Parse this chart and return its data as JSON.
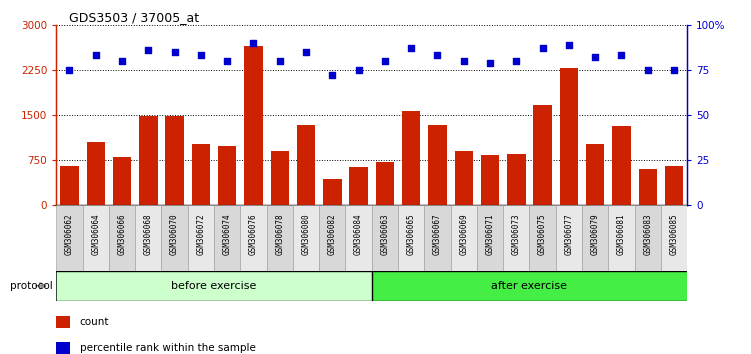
{
  "title": "GDS3503 / 37005_at",
  "samples": [
    "GSM306062",
    "GSM306064",
    "GSM306066",
    "GSM306068",
    "GSM306070",
    "GSM306072",
    "GSM306074",
    "GSM306076",
    "GSM306078",
    "GSM306080",
    "GSM306082",
    "GSM306084",
    "GSM306063",
    "GSM306065",
    "GSM306067",
    "GSM306069",
    "GSM306071",
    "GSM306073",
    "GSM306075",
    "GSM306077",
    "GSM306079",
    "GSM306081",
    "GSM306083",
    "GSM306085"
  ],
  "counts": [
    650,
    1050,
    800,
    1480,
    1490,
    1020,
    980,
    2650,
    900,
    1340,
    430,
    640,
    720,
    1570,
    1330,
    900,
    830,
    850,
    1660,
    2290,
    1020,
    1320,
    600,
    660
  ],
  "percentile_ranks": [
    75,
    83,
    80,
    86,
    85,
    83,
    80,
    90,
    80,
    85,
    72,
    75,
    80,
    87,
    83,
    80,
    79,
    80,
    87,
    89,
    82,
    83,
    75,
    75
  ],
  "before_exercise_count": 12,
  "left_ylim": [
    0,
    3000
  ],
  "right_ylim": [
    0,
    100
  ],
  "left_yticks": [
    0,
    750,
    1500,
    2250,
    3000
  ],
  "right_yticks": [
    0,
    25,
    50,
    75,
    100
  ],
  "bar_color": "#cc2200",
  "dot_color": "#0000cc",
  "before_color": "#ccffcc",
  "after_color": "#44ee44",
  "protocol_label": "protocol",
  "before_label": "before exercise",
  "after_label": "after exercise",
  "legend_count": "count",
  "legend_percentile": "percentile rank within the sample",
  "label_box_color": "#d8d8d8",
  "label_box_color_alt": "#e8e8e8"
}
